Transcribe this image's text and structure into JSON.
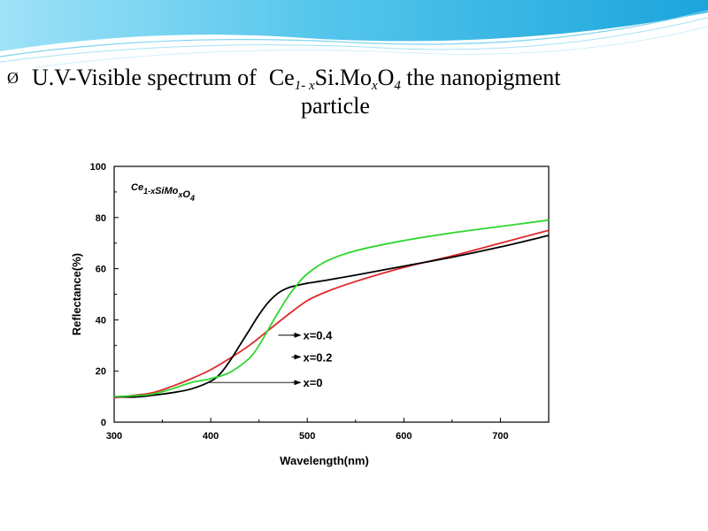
{
  "title": {
    "bullet": "Ø",
    "text_prefix": "U.V-Visible spectrum of",
    "formula_ce": "Ce",
    "formula_sub1": "1- x",
    "formula_simo": "Si.Mo",
    "formula_subx": "x",
    "formula_o": "O",
    "formula_sub4": "4",
    "text_suffix": "the nanopigment",
    "line2": "particle"
  },
  "colors": {
    "header_blue": "#2ab0e0",
    "x0": "#000000",
    "x02": "#e0282a",
    "x04": "#2fd62f"
  },
  "chart_data": {
    "type": "line",
    "title": "Ce1-xSiMoxO4",
    "xlabel": "Wavelength(nm)",
    "ylabel": "Reflectance(%)",
    "xlim": [
      300,
      750
    ],
    "ylim": [
      0,
      100
    ],
    "xticks": [
      300,
      400,
      500,
      600,
      700
    ],
    "yticks": [
      0,
      20,
      40,
      60,
      80,
      100
    ],
    "grid": false,
    "series": [
      {
        "name": "x=0",
        "color": "#000000",
        "x": [
          300,
          320,
          340,
          360,
          380,
          400,
          410,
          420,
          430,
          440,
          450,
          460,
          470,
          480,
          490,
          500,
          520,
          550,
          600,
          650,
          700,
          750
        ],
        "y": [
          10,
          9.8,
          10.5,
          11.5,
          13,
          16,
          19,
          24,
          30,
          36,
          42,
          47,
          50.5,
          52.5,
          53.5,
          54.3,
          55.5,
          57.5,
          61,
          64.5,
          68.5,
          73
        ]
      },
      {
        "name": "x=0.2",
        "color": "#e0282a",
        "x": [
          300,
          320,
          340,
          360,
          380,
          400,
          420,
          440,
          460,
          480,
          500,
          520,
          550,
          600,
          650,
          700,
          750
        ],
        "y": [
          9.5,
          10.5,
          11.5,
          14,
          17,
          20.5,
          25,
          30,
          36,
          42,
          47.5,
          51,
          55,
          60.5,
          65,
          70,
          75
        ]
      },
      {
        "name": "x=0.4",
        "color": "#2fd62f",
        "x": [
          300,
          320,
          340,
          360,
          380,
          400,
          420,
          440,
          450,
          460,
          470,
          480,
          490,
          500,
          520,
          550,
          600,
          650,
          700,
          750
        ],
        "y": [
          10,
          10.3,
          11,
          13,
          15.5,
          17,
          19.5,
          25,
          30,
          36.5,
          43,
          49,
          54,
          58,
          63,
          67,
          71,
          74,
          76.5,
          79
        ]
      }
    ],
    "annotations": [
      {
        "text": "x=0.4",
        "series": "x=0.4",
        "arrow_to": [
          470,
          34
        ],
        "label_at": [
          492,
          34
        ]
      },
      {
        "text": "x=0.2",
        "series": "x=0.2",
        "arrow_to": [
          485,
          25.5
        ],
        "label_at": [
          492,
          25.5
        ]
      },
      {
        "text": "x=0",
        "series": "x=0",
        "arrow_to": [
          398,
          15.5
        ],
        "label_at": [
          492,
          15.5
        ]
      }
    ]
  }
}
